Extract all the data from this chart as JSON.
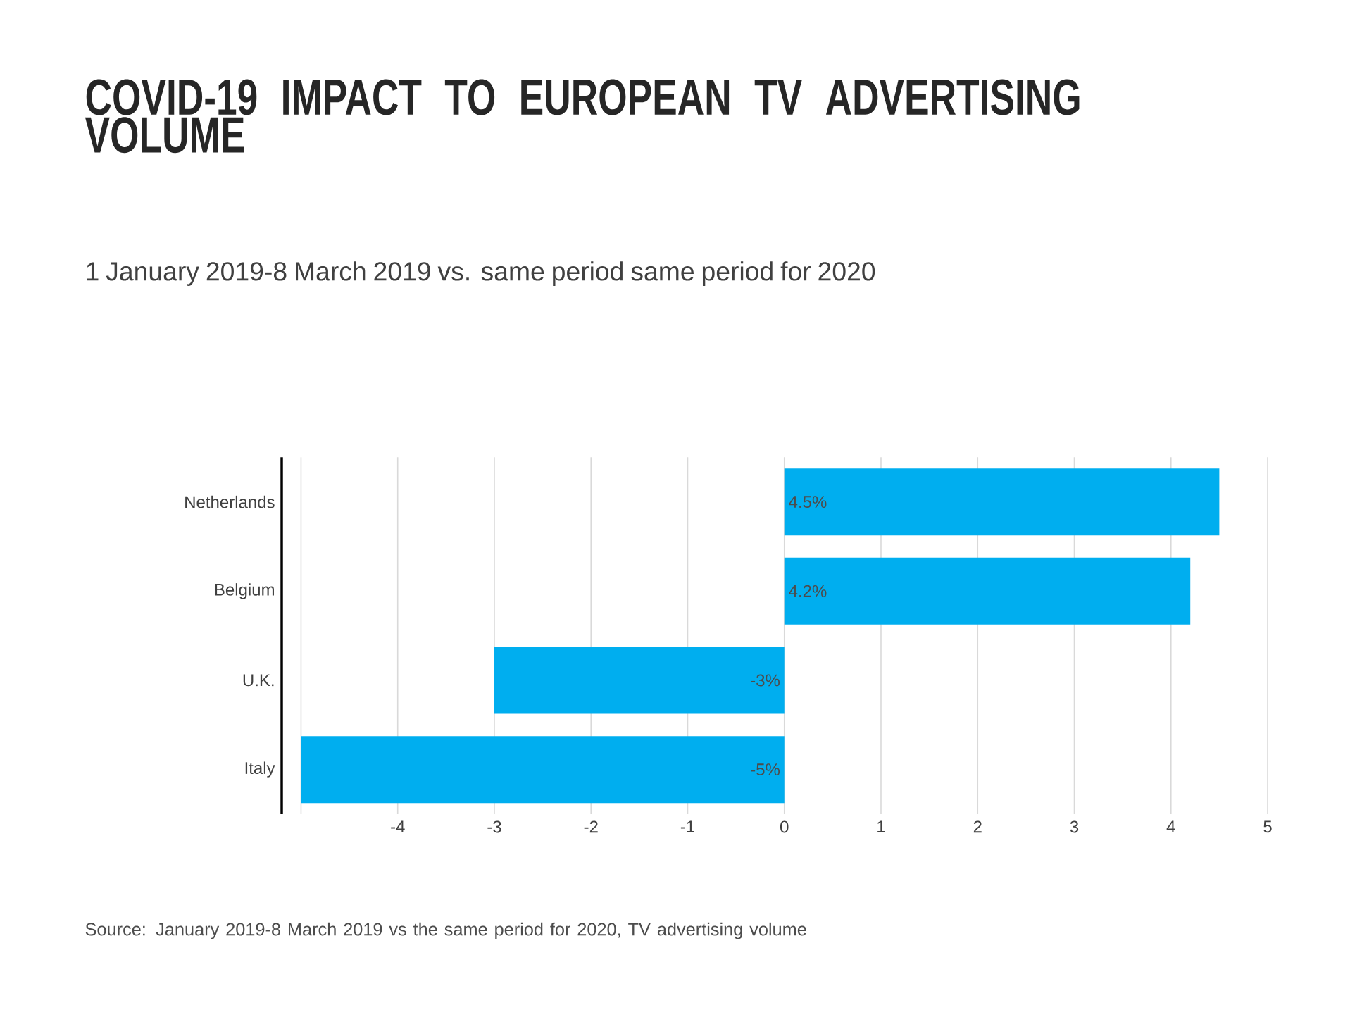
{
  "chart_data": {
    "type": "bar",
    "orientation": "horizontal",
    "title": "COVID-19 IMPACT TO EUROPEAN TV ADVERTISING VOLUME",
    "subtitle": "1 January 2019-8 March 2019 vs. same period same period for 2020",
    "categories": [
      "Netherlands",
      "Belgium",
      "U.K.",
      "Italy"
    ],
    "values": [
      4.5,
      4.2,
      -3,
      -5
    ],
    "value_labels": [
      "4.5%",
      "4.2%",
      "-3%",
      "-5%"
    ],
    "color": "#00aeef",
    "xlim": [
      -5.2,
      5
    ],
    "xticks": [
      {
        "value": -5,
        "label": null
      },
      -4,
      -3,
      -2,
      -1,
      0,
      1,
      2,
      3,
      4,
      5
    ],
    "grid": "x",
    "annotations": [
      "Source: January 2019-8 March 2019 vs the same period for 2020, TV advertising volume"
    ]
  }
}
